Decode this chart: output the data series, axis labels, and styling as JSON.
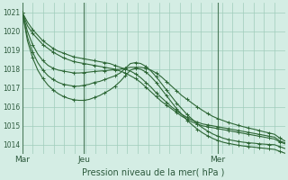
{
  "title": "Pression niveau de la mer( hPa )",
  "bg_color": "#d4ede4",
  "grid_color": "#a0ccbb",
  "line_color": "#2d6635",
  "vline_color": "#4a7a5a",
  "ylim": [
    1013.5,
    1021.5
  ],
  "yticks": [
    1014,
    1015,
    1016,
    1017,
    1018,
    1019,
    1020,
    1021
  ],
  "n_points": 52,
  "xlim": [
    0,
    51
  ],
  "vline_positions": [
    0,
    12,
    38
  ],
  "xtick_positions": [
    0,
    12,
    38
  ],
  "xtick_labels": [
    "Mar",
    "Jeu",
    "Mer"
  ],
  "series": [
    [
      1021.0,
      1020.5,
      1020.1,
      1019.8,
      1019.5,
      1019.3,
      1019.1,
      1018.95,
      1018.85,
      1018.75,
      1018.65,
      1018.6,
      1018.55,
      1018.5,
      1018.45,
      1018.4,
      1018.35,
      1018.3,
      1018.2,
      1018.1,
      1018.0,
      1017.9,
      1017.75,
      1017.55,
      1017.3,
      1017.05,
      1016.75,
      1016.5,
      1016.25,
      1016.0,
      1015.8,
      1015.6,
      1015.45,
      1015.3,
      1015.2,
      1015.1,
      1015.05,
      1015.0,
      1014.95,
      1014.9,
      1014.85,
      1014.8,
      1014.75,
      1014.7,
      1014.65,
      1014.6,
      1014.55,
      1014.5,
      1014.45,
      1014.4,
      1014.2,
      1014.1
    ],
    [
      1021.0,
      1020.3,
      1019.9,
      1019.6,
      1019.3,
      1019.1,
      1018.9,
      1018.75,
      1018.6,
      1018.5,
      1018.4,
      1018.35,
      1018.3,
      1018.25,
      1018.2,
      1018.15,
      1018.1,
      1018.05,
      1018.0,
      1017.9,
      1017.8,
      1017.65,
      1017.5,
      1017.3,
      1017.05,
      1016.8,
      1016.55,
      1016.3,
      1016.1,
      1015.9,
      1015.7,
      1015.5,
      1015.35,
      1015.2,
      1015.1,
      1015.0,
      1014.95,
      1014.9,
      1014.85,
      1014.8,
      1014.75,
      1014.7,
      1014.65,
      1014.6,
      1014.55,
      1014.5,
      1014.45,
      1014.4,
      1014.35,
      1014.3,
      1014.15,
      1014.05
    ],
    [
      1021.0,
      1020.0,
      1019.3,
      1018.8,
      1018.45,
      1018.2,
      1018.05,
      1017.95,
      1017.9,
      1017.85,
      1017.8,
      1017.8,
      1017.82,
      1017.85,
      1017.88,
      1017.9,
      1017.92,
      1017.95,
      1017.97,
      1018.0,
      1018.05,
      1018.1,
      1018.1,
      1018.1,
      1018.05,
      1017.95,
      1017.8,
      1017.6,
      1017.35,
      1017.1,
      1016.85,
      1016.6,
      1016.4,
      1016.2,
      1016.0,
      1015.82,
      1015.65,
      1015.5,
      1015.38,
      1015.28,
      1015.18,
      1015.1,
      1015.02,
      1014.95,
      1014.88,
      1014.82,
      1014.75,
      1014.68,
      1014.62,
      1014.55,
      1014.35,
      1014.2
    ],
    [
      1021.0,
      1019.7,
      1018.9,
      1018.35,
      1017.95,
      1017.65,
      1017.45,
      1017.3,
      1017.2,
      1017.15,
      1017.1,
      1017.1,
      1017.15,
      1017.2,
      1017.3,
      1017.35,
      1017.45,
      1017.55,
      1017.65,
      1017.8,
      1018.05,
      1018.3,
      1018.35,
      1018.3,
      1018.15,
      1017.9,
      1017.6,
      1017.25,
      1016.9,
      1016.55,
      1016.2,
      1015.9,
      1015.6,
      1015.35,
      1015.1,
      1014.9,
      1014.72,
      1014.57,
      1014.45,
      1014.35,
      1014.27,
      1014.22,
      1014.17,
      1014.13,
      1014.1,
      1014.08,
      1014.05,
      1014.03,
      1014.01,
      1014.0,
      1013.9,
      1013.8
    ],
    [
      1021.0,
      1019.5,
      1018.6,
      1017.95,
      1017.5,
      1017.15,
      1016.9,
      1016.7,
      1016.55,
      1016.45,
      1016.38,
      1016.35,
      1016.35,
      1016.4,
      1016.5,
      1016.6,
      1016.75,
      1016.9,
      1017.1,
      1017.35,
      1017.65,
      1017.95,
      1018.05,
      1018.0,
      1017.85,
      1017.6,
      1017.3,
      1016.95,
      1016.6,
      1016.25,
      1015.9,
      1015.6,
      1015.3,
      1015.05,
      1014.82,
      1014.63,
      1014.47,
      1014.33,
      1014.22,
      1014.13,
      1014.07,
      1014.02,
      1013.97,
      1013.93,
      1013.9,
      1013.87,
      1013.84,
      1013.81,
      1013.78,
      1013.75,
      1013.65,
      1013.55
    ]
  ]
}
